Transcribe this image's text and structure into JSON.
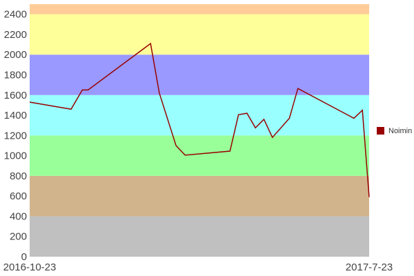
{
  "chart_data": {
    "type": "line",
    "x_labels": [
      "2016-10-23",
      "2017-7-23"
    ],
    "ylim": [
      0,
      2500
    ],
    "y_ticks": [
      0,
      200,
      400,
      600,
      800,
      1000,
      1200,
      1400,
      1600,
      1800,
      2000,
      2200,
      2400
    ],
    "grid": false,
    "legend_position": "right",
    "bands": [
      {
        "from": 0,
        "to": 400,
        "color": "#c0c0c0"
      },
      {
        "from": 400,
        "to": 800,
        "color": "#d2b48c"
      },
      {
        "from": 800,
        "to": 1200,
        "color": "#99ff99"
      },
      {
        "from": 1200,
        "to": 1600,
        "color": "#99ffff"
      },
      {
        "from": 1600,
        "to": 2000,
        "color": "#9999ff"
      },
      {
        "from": 2000,
        "to": 2400,
        "color": "#ffff99"
      },
      {
        "from": 2400,
        "to": 2500,
        "color": "#ffcc99"
      }
    ],
    "series": [
      {
        "name": "Noimin",
        "color": "#990000",
        "x": [
          0,
          0.122,
          0.155,
          0.172,
          0.356,
          0.382,
          0.431,
          0.458,
          0.59,
          0.615,
          0.64,
          0.665,
          0.69,
          0.715,
          0.765,
          0.79,
          0.955,
          0.98,
          1.0
        ],
        "values": [
          1530,
          1460,
          1650,
          1650,
          2110,
          1620,
          1100,
          1005,
          1045,
          1405,
          1420,
          1275,
          1360,
          1180,
          1370,
          1665,
          1370,
          1450,
          590
        ]
      }
    ]
  }
}
